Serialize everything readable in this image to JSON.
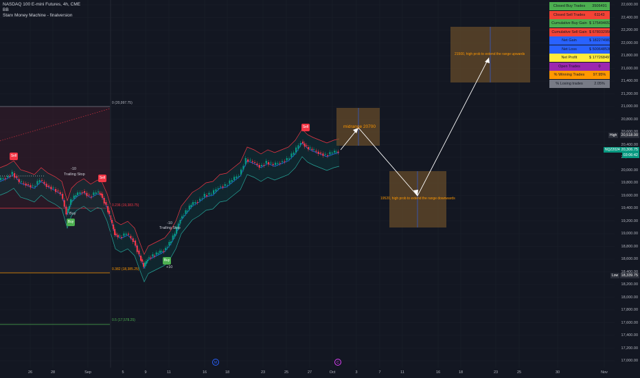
{
  "header": {
    "symbol_line": "NASDAQ 100 E-mini Futures, 4h, CME",
    "indicator1": "BB",
    "indicator2": "Starx Money Machine - finalversion"
  },
  "price_axis": {
    "labels": [
      "22,600.00",
      "22,400.00",
      "22,200.00",
      "22,000.00",
      "21,800.00",
      "21,600.00",
      "21,400.00",
      "21,200.00",
      "21,000.00",
      "20,800.00",
      "20,600.00",
      "20,400.00",
      "20,200.00",
      "20,000.00",
      "19,800.00",
      "19,600.00",
      "19,400.00",
      "19,200.00",
      "19,000.00",
      "18,800.00",
      "18,600.00",
      "18,400.00",
      "18,200.00",
      "18,000.00",
      "17,800.00",
      "17,600.00",
      "17,400.00",
      "17,200.00",
      "17,000.00"
    ],
    "high_label": "High",
    "high_value": "20,518.00",
    "symbol_badge": "NQZ2024",
    "last_price": "20,306.75",
    "countdown": "03:06:42",
    "low_label": "Low",
    "low_value": "18,339.75",
    "colors": {
      "high": "#2a2e39",
      "last": "#089981",
      "low": "#2a2e39"
    }
  },
  "time_axis": {
    "labels": [
      "26",
      "28",
      "Sep",
      "5",
      "9",
      "11",
      "16",
      "18",
      "23",
      "25",
      "27",
      "Oct",
      "3",
      "7",
      "11",
      "16",
      "18",
      "23",
      "25",
      "30",
      "Nov"
    ]
  },
  "stats_table": [
    {
      "label": "Closed Buy Trades",
      "value": "3506491",
      "color": "#4caf50"
    },
    {
      "label": "Closed Sell Trades",
      "value": "61143",
      "color": "#f44336"
    },
    {
      "label": "Cumulative Buy Gain",
      "value": "$ 17549465330",
      "color": "#4caf50"
    },
    {
      "label": "Cumulative Sell Gain",
      "value": "$ 678032950",
      "color": "#f44336"
    },
    {
      "label": "Net Gain",
      "value": "$ 18227498280",
      "color": "#2962ff"
    },
    {
      "label": "Net Loss",
      "value": "$ 500648530",
      "color": "#2962ff"
    },
    {
      "label": "Net Profit",
      "value": "$ 17726849750",
      "color": "#ffeb3b"
    },
    {
      "label": "Open Trades",
      "value": "0",
      "color": "#9c27b0"
    },
    {
      "label": "% Winning Trades",
      "value": "97.95%",
      "color": "#ff9800"
    },
    {
      "label": "% Losing trades",
      "value": "2.05%",
      "color": "#787b86"
    }
  ],
  "signals": {
    "sell": "Sell",
    "buy": "Buy",
    "trailing_stop": "Trailing Stop",
    "minus10": "-10",
    "plus10": "+10"
  },
  "fib": {
    "f0": "0 (20,997.75)",
    "f236": "0.236 (19,383.75)",
    "f382": "0.382 (18,385.25)",
    "f05": "0.5 (17,578.25)"
  },
  "annotations": {
    "midrange": "midrange 20700",
    "up_target": "21500, high prob to extend the range upwards",
    "down_target": "19520, high prob to extend the range downwards"
  },
  "colors": {
    "background": "#131722",
    "up_candle": "#089981",
    "down_candle": "#f23645",
    "zone": "#5d4a2d"
  }
}
